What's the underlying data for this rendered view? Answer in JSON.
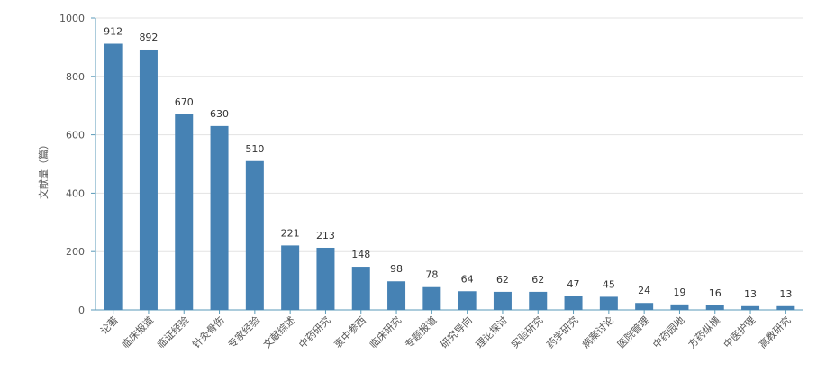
{
  "chart_data": {
    "type": "bar",
    "title": "",
    "xlabel": "",
    "ylabel": "文献量（篇）",
    "ylim": [
      0,
      1000
    ],
    "yticks": [
      0,
      200,
      400,
      600,
      800,
      1000
    ],
    "grid": true,
    "bar_color": "#4682b4",
    "categories": [
      "论著",
      "临床报道",
      "临证经验",
      "针灸骨伤",
      "专家经验",
      "文献综述",
      "中药研究",
      "衷中参西",
      "临床研究",
      "专题报道",
      "研究导向",
      "理论探讨",
      "实验研究",
      "药学研究",
      "病案讨论",
      "医院管理",
      "中药园地",
      "方药纵横",
      "中医护理",
      "高教研究"
    ],
    "values": [
      912,
      892,
      670,
      630,
      510,
      221,
      213,
      148,
      98,
      78,
      64,
      62,
      62,
      47,
      45,
      24,
      19,
      16,
      13,
      13
    ]
  }
}
